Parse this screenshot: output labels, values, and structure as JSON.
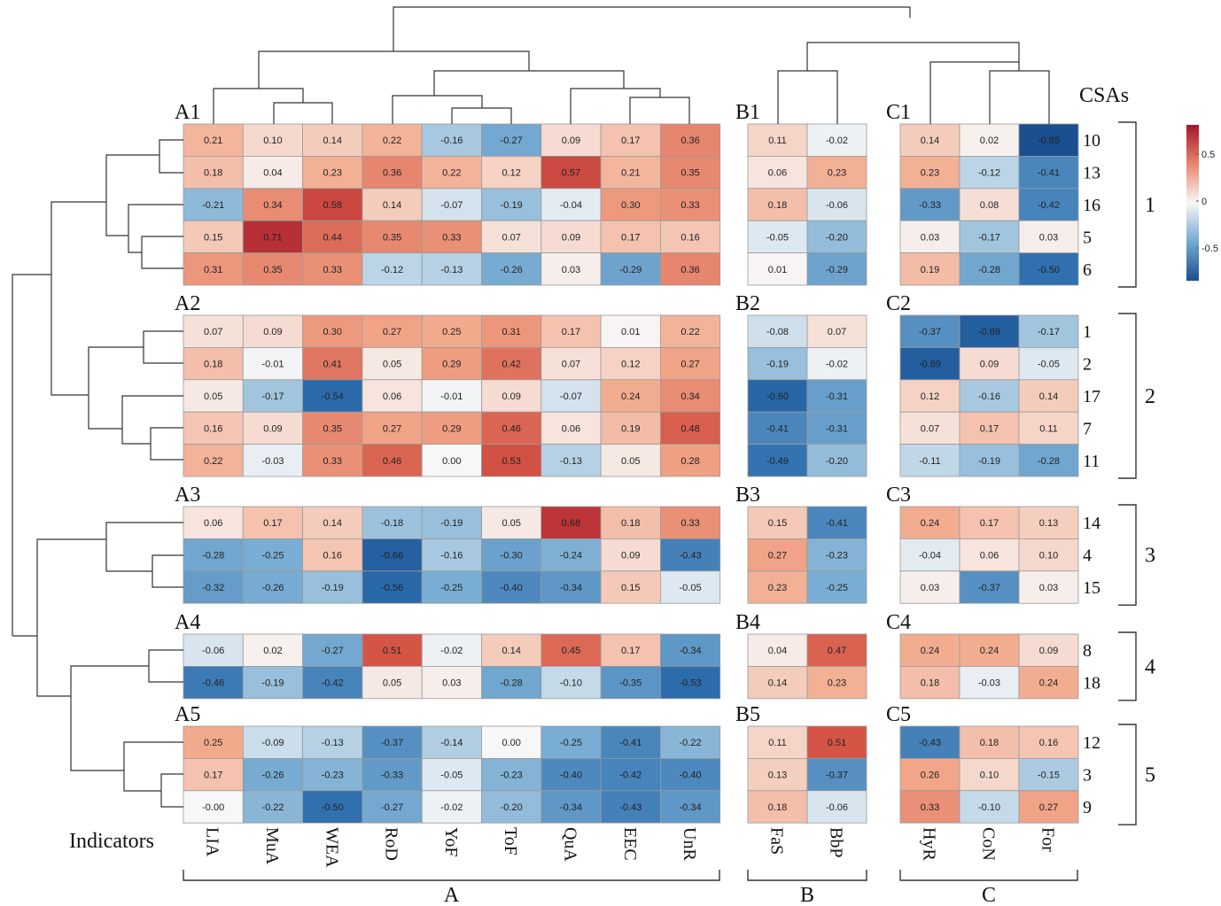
{
  "chart_data": {
    "type": "heatmap",
    "row_title": "CSAs",
    "col_title": "Indicators",
    "col_groups": [
      {
        "name": "A",
        "columns": [
          "LIA",
          "MuA",
          "WEA",
          "RoD",
          "YoF",
          "ToF",
          "QuA",
          "EEC",
          "UnR"
        ]
      },
      {
        "name": "B",
        "columns": [
          "FaS",
          "BbP"
        ]
      },
      {
        "name": "C",
        "columns": [
          "HyR",
          "CoN",
          "For"
        ]
      }
    ],
    "row_groups": [
      {
        "name": "1",
        "rows": [
          "10",
          "13",
          "16",
          "5",
          "6"
        ]
      },
      {
        "name": "2",
        "rows": [
          "1",
          "2",
          "17",
          "7",
          "11"
        ]
      },
      {
        "name": "3",
        "rows": [
          "14",
          "4",
          "15"
        ]
      },
      {
        "name": "4",
        "rows": [
          "8",
          "18"
        ]
      },
      {
        "name": "5",
        "rows": [
          "12",
          "3",
          "9"
        ]
      }
    ],
    "block_labels": [
      [
        "A1",
        "B1",
        "C1"
      ],
      [
        "A2",
        "B2",
        "C2"
      ],
      [
        "A3",
        "B3",
        "C3"
      ],
      [
        "A4",
        "B4",
        "C4"
      ],
      [
        "A5",
        "B5",
        "C5"
      ]
    ],
    "values": [
      [
        "0.21",
        "0.10",
        "0.14",
        "0.22",
        "-0.16",
        "-0.27",
        "0.09",
        "0.17",
        "0.36",
        "0.11",
        "-0.02",
        "0.14",
        "0.02",
        "-0.85"
      ],
      [
        "0.18",
        "0.04",
        "0.23",
        "0.36",
        "0.22",
        "0.12",
        "0.57",
        "0.21",
        "0.35",
        "0.06",
        "0.23",
        "0.23",
        "-0.12",
        "-0.41"
      ],
      [
        "-0.21",
        "0.34",
        "0.58",
        "0.14",
        "-0.07",
        "-0.19",
        "-0.04",
        "0.30",
        "0.33",
        "0.18",
        "-0.06",
        "-0.33",
        "0.08",
        "-0.42"
      ],
      [
        "0.15",
        "0.71",
        "0.44",
        "0.35",
        "0.33",
        "0.07",
        "0.09",
        "0.17",
        "0.16",
        "-0.05",
        "-0.20",
        "0.03",
        "-0.17",
        "0.03"
      ],
      [
        "0.31",
        "0.35",
        "0.33",
        "-0.12",
        "-0.13",
        "-0.26",
        "0.03",
        "-0.29",
        "0.36",
        "0.01",
        "-0.29",
        "0.19",
        "-0.28",
        "-0.50"
      ],
      [
        "0.07",
        "0.09",
        "0.30",
        "0.27",
        "0.25",
        "0.31",
        "0.17",
        "0.01",
        "0.22",
        "-0.08",
        "0.07",
        "-0.37",
        "-0.69",
        "-0.17"
      ],
      [
        "0.18",
        "-0.01",
        "0.41",
        "0.05",
        "0.29",
        "0.42",
        "0.07",
        "0.12",
        "0.27",
        "-0.19",
        "-0.02",
        "-0.69",
        "0.09",
        "-0.05"
      ],
      [
        "0.05",
        "-0.17",
        "-0.54",
        "0.06",
        "-0.01",
        "0.09",
        "-0.07",
        "0.24",
        "0.34",
        "-0.60",
        "-0.31",
        "0.12",
        "-0.16",
        "0.14"
      ],
      [
        "0.16",
        "0.09",
        "0.35",
        "0.27",
        "0.29",
        "0.46",
        "0.06",
        "0.19",
        "0.48",
        "-0.41",
        "-0.31",
        "0.07",
        "0.17",
        "0.11"
      ],
      [
        "0.22",
        "-0.03",
        "0.33",
        "0.46",
        "0.00",
        "0.53",
        "-0.13",
        "0.05",
        "0.28",
        "-0.49",
        "-0.20",
        "-0.11",
        "-0.19",
        "-0.28"
      ],
      [
        "0.06",
        "0.17",
        "0.14",
        "-0.18",
        "-0.19",
        "0.05",
        "0.68",
        "0.18",
        "0.33",
        "0.15",
        "-0.41",
        "0.24",
        "0.17",
        "0.13"
      ],
      [
        "-0.28",
        "-0.25",
        "0.16",
        "-0.66",
        "-0.16",
        "-0.30",
        "-0.24",
        "0.09",
        "-0.43",
        "0.27",
        "-0.23",
        "-0.04",
        "0.06",
        "0.10"
      ],
      [
        "-0.32",
        "-0.26",
        "-0.19",
        "-0.56",
        "-0.25",
        "-0.40",
        "-0.34",
        "0.15",
        "-0.05",
        "0.23",
        "-0.25",
        "0.03",
        "-0.37",
        "0.03"
      ],
      [
        "-0.06",
        "0.02",
        "-0.27",
        "0.51",
        "-0.02",
        "0.14",
        "0.45",
        "0.17",
        "-0.34",
        "0.04",
        "0.47",
        "0.24",
        "0.24",
        "0.09"
      ],
      [
        "-0.46",
        "-0.19",
        "-0.42",
        "0.05",
        "0.03",
        "-0.28",
        "-0.10",
        "-0.35",
        "-0.53",
        "0.14",
        "0.23",
        "0.18",
        "-0.03",
        "0.24"
      ],
      [
        "0.25",
        "-0.09",
        "-0.13",
        "-0.37",
        "-0.14",
        "0.00",
        "-0.25",
        "-0.41",
        "-0.22",
        "0.11",
        "0.51",
        "-0.43",
        "0.18",
        "0.16"
      ],
      [
        "0.17",
        "-0.26",
        "-0.23",
        "-0.33",
        "-0.05",
        "-0.23",
        "-0.40",
        "-0.42",
        "-0.40",
        "0.13",
        "-0.37",
        "0.26",
        "0.10",
        "-0.15"
      ],
      [
        "-0.00",
        "-0.22",
        "-0.50",
        "-0.27",
        "-0.02",
        "-0.20",
        "-0.34",
        "-0.43",
        "-0.34",
        "0.18",
        "-0.06",
        "0.33",
        "-0.10",
        "0.27"
      ]
    ],
    "color_scale": {
      "min": -0.85,
      "max": 0.85,
      "low": "#1a4f8f",
      "mid": "#f7f7f7",
      "high": "#a3162a",
      "ticks": [
        "0.5",
        "0",
        "-0.5"
      ]
    },
    "legend_placement": "right"
  }
}
